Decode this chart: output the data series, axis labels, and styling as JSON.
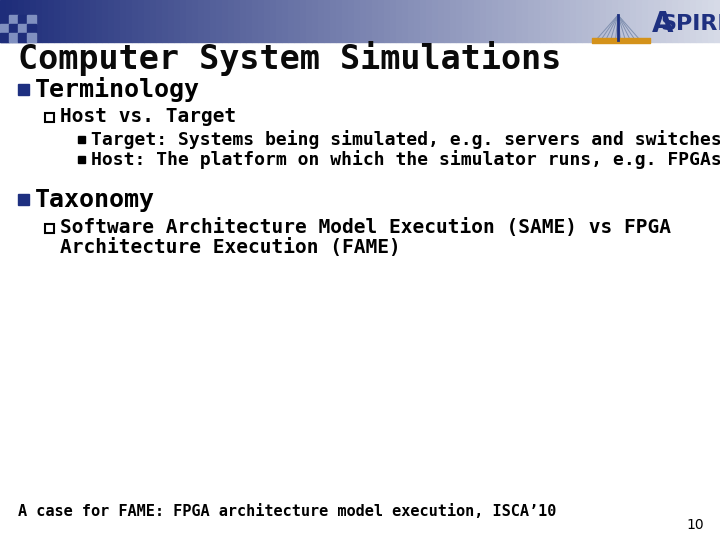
{
  "title": "Computer System Simulations",
  "title_color": "#0a0a0a",
  "background_color": "#ffffff",
  "bullet1_text": "Terminology",
  "sub_bullet1_text": "Host vs. Target",
  "sub_sub_bullet1": "Target: Systems being simulated, e.g. servers and switches",
  "sub_sub_bullet2": "Host: The platform on which the simulator runs, e.g. FPGAs",
  "bullet2_text": "Taxonomy",
  "sub_bullet2_line1": "Software Architecture Model Execution (SAME) vs FPGA",
  "sub_bullet2_line2": "Architecture Execution (FAME)",
  "footer_text": "A case for FAME: FPGA architecture model execution, ISCA’10",
  "page_number": "10",
  "bullet_color": "#1e3080",
  "text_color": "#000000",
  "aspire_color": "#1e3080",
  "aspire_accent_color": "#d4921a",
  "header_left_color": "#1e2d7a",
  "header_right_color": "#d8dce8",
  "checker_dark": "#1e2d7a",
  "checker_light": "#8090c0",
  "title_fontsize": 24,
  "bullet1_fontsize": 18,
  "sub_bullet_fontsize": 14,
  "sub_sub_fontsize": 13,
  "footer_fontsize": 11
}
